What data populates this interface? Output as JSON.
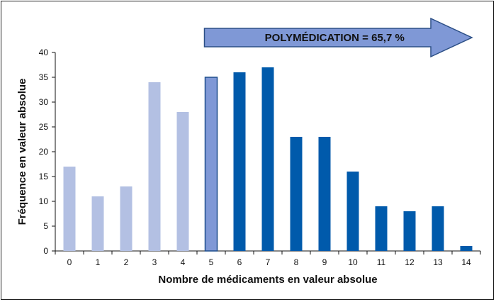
{
  "chart_data": {
    "type": "bar",
    "categories": [
      "0",
      "1",
      "2",
      "3",
      "4",
      "5",
      "6",
      "7",
      "8",
      "9",
      "10",
      "11",
      "12",
      "13",
      "14"
    ],
    "values": [
      17,
      11,
      13,
      34,
      28,
      35,
      36,
      37,
      23,
      23,
      16,
      9,
      8,
      9,
      1
    ],
    "xlabel": "Nombre de médicaments en valeur absolue",
    "ylabel": "Fréquence en valeur absolue",
    "ylim": [
      0,
      40
    ],
    "yticks": [
      0,
      5,
      10,
      15,
      20,
      25,
      30,
      35,
      40
    ],
    "grid": false,
    "colors": {
      "light": "#b3c0e3",
      "highlight": "#7f98d6",
      "dark": "#005aab",
      "edge": "#1f4e8c",
      "arrow_fill": "#7f98d6",
      "arrow_edge": "#2c4f86"
    },
    "annotation": {
      "text": "POLYMÉDICATION = 65,7 %",
      "from_category": "5"
    }
  }
}
